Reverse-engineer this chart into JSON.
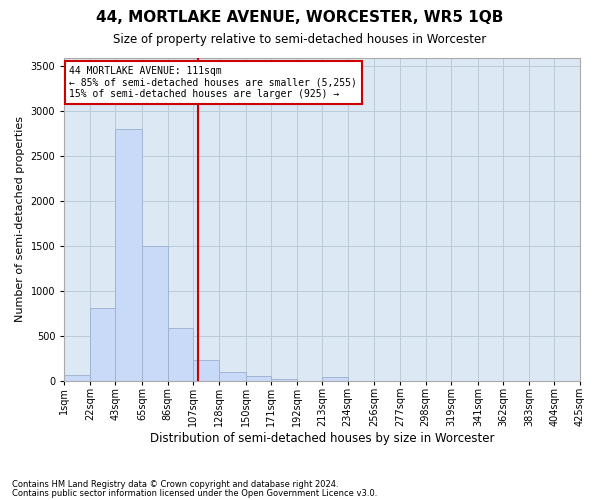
{
  "title": "44, MORTLAKE AVENUE, WORCESTER, WR5 1QB",
  "subtitle": "Size of property relative to semi-detached houses in Worcester",
  "xlabel": "Distribution of semi-detached houses by size in Worcester",
  "ylabel": "Number of semi-detached properties",
  "footnote1": "Contains HM Land Registry data © Crown copyright and database right 2024.",
  "footnote2": "Contains public sector information licensed under the Open Government Licence v3.0.",
  "annotation_line1": "44 MORTLAKE AVENUE: 111sqm",
  "annotation_line2": "← 85% of semi-detached houses are smaller (5,255)",
  "annotation_line3": "15% of semi-detached houses are larger (925) →",
  "property_size": 111,
  "bar_color": "#c9daf8",
  "bar_edge_color": "#9ab0cc",
  "vline_color": "#cc0000",
  "annotation_box_edge": "#cc0000",
  "background_color": "#ffffff",
  "grid_color": "#b8ccd8",
  "ax_bg_color": "#dce8f4",
  "bins": [
    1,
    22,
    43,
    65,
    86,
    107,
    128,
    150,
    171,
    192,
    213,
    234,
    256,
    277,
    298,
    319,
    341,
    362,
    383,
    404,
    425
  ],
  "bin_labels": [
    "1sqm",
    "22sqm",
    "43sqm",
    "65sqm",
    "86sqm",
    "107sqm",
    "128sqm",
    "150sqm",
    "171sqm",
    "192sqm",
    "213sqm",
    "234sqm",
    "256sqm",
    "277sqm",
    "298sqm",
    "319sqm",
    "341sqm",
    "362sqm",
    "383sqm",
    "404sqm",
    "425sqm"
  ],
  "values": [
    75,
    820,
    2800,
    1500,
    590,
    240,
    100,
    60,
    30,
    5,
    50,
    0,
    0,
    0,
    0,
    0,
    0,
    0,
    0,
    0
  ],
  "ylim": [
    0,
    3600
  ],
  "yticks": [
    0,
    500,
    1000,
    1500,
    2000,
    2500,
    3000,
    3500
  ],
  "title_fontsize": 11,
  "subtitle_fontsize": 8.5,
  "ylabel_fontsize": 8,
  "xlabel_fontsize": 8.5,
  "tick_fontsize": 7,
  "footnote_fontsize": 6.0
}
